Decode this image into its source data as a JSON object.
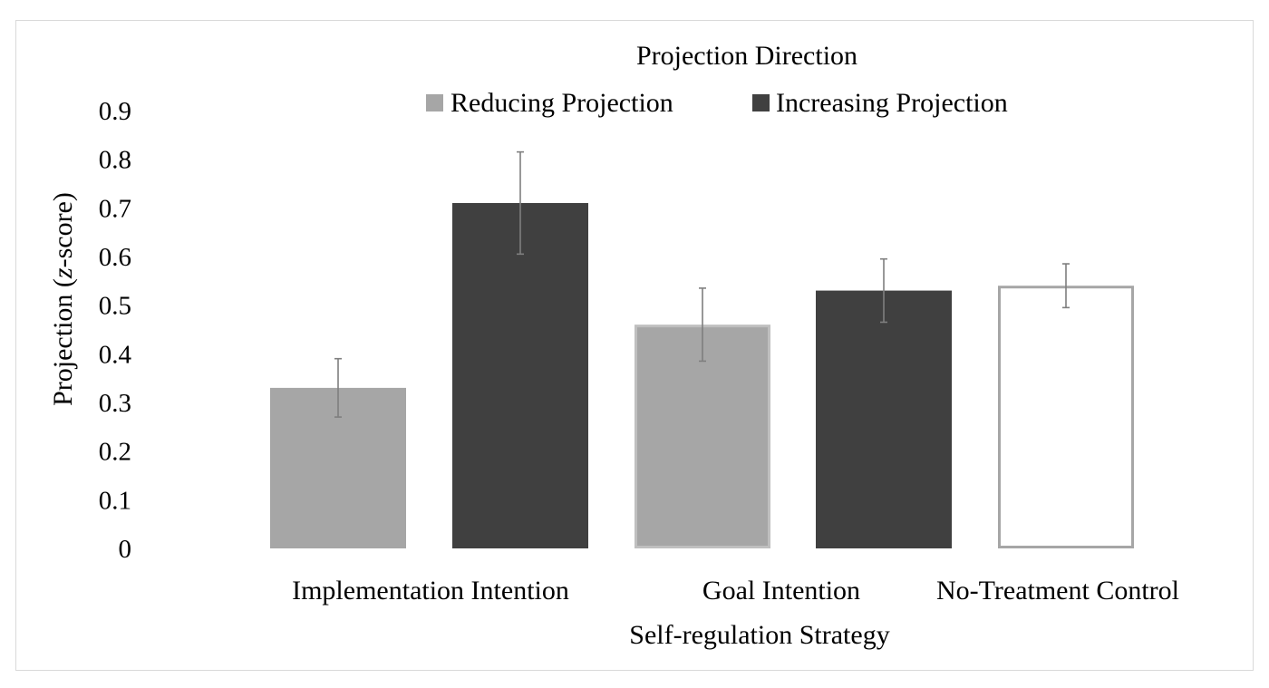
{
  "chart_data": {
    "type": "bar",
    "legend_title": "Projection Direction",
    "xlabel": "Self-regulation Strategy",
    "ylabel": "Projection (z-score)",
    "ylabel_parts": [
      "Projection (",
      "z",
      "-score)"
    ],
    "ylim": [
      0,
      0.9
    ],
    "yticks": [
      "0",
      "0.1",
      "0.2",
      "0.3",
      "0.4",
      "0.5",
      "0.6",
      "0.7",
      "0.8",
      "0.9"
    ],
    "grid": false,
    "legend_position": "top",
    "legend": [
      {
        "name": "Reducing Projection",
        "color": "#a6a6a6"
      },
      {
        "name": "Increasing Projection",
        "color": "#404040"
      }
    ],
    "categories": [
      "Implementation Intention",
      "Goal Intention",
      "No-Treatment Control"
    ],
    "bars": [
      {
        "category": "Implementation Intention",
        "series": "Reducing Projection",
        "value": 0.33,
        "err_low": 0.27,
        "err_high": 0.39,
        "fill": "#a6a6a6",
        "stroke": "#a6a6a6"
      },
      {
        "category": "Implementation Intention",
        "series": "Increasing Projection",
        "value": 0.71,
        "err_low": 0.605,
        "err_high": 0.815,
        "fill": "#404040",
        "stroke": "#404040"
      },
      {
        "category": "Goal Intention",
        "series": "Reducing Projection",
        "value": 0.46,
        "err_low": 0.385,
        "err_high": 0.535,
        "fill": "#a6a6a6",
        "stroke": "#bfbfbf"
      },
      {
        "category": "Goal Intention",
        "series": "Increasing Projection",
        "value": 0.53,
        "err_low": 0.465,
        "err_high": 0.595,
        "fill": "#404040",
        "stroke": "#404040"
      },
      {
        "category": "No-Treatment Control",
        "series": "Control",
        "value": 0.54,
        "err_low": 0.495,
        "err_high": 0.585,
        "fill": "#ffffff",
        "stroke": "#a6a6a6"
      }
    ],
    "error_bar_color": "#7f7f7f"
  }
}
